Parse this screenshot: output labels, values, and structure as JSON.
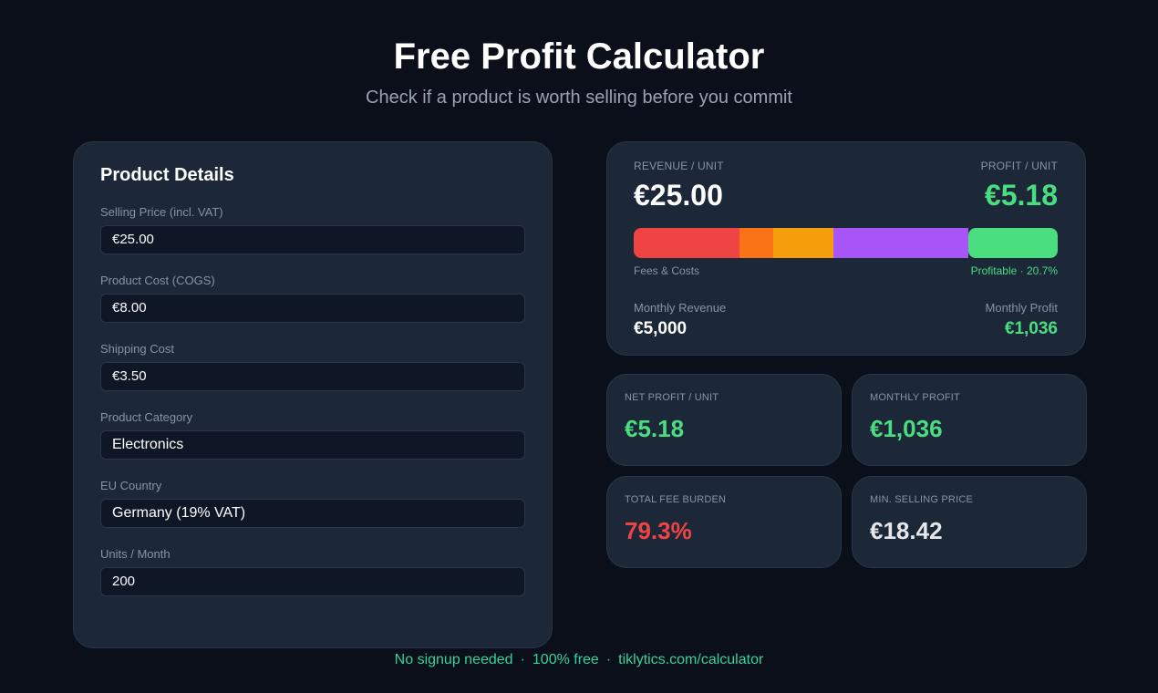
{
  "header": {
    "title": "Free Profit Calculator",
    "subtitle": "Check if a product is worth selling before you commit"
  },
  "details": {
    "title": "Product Details",
    "fields": [
      {
        "label": "Selling Price (incl. VAT)",
        "value": "€25.00"
      },
      {
        "label": "Product Cost (COGS)",
        "value": "€8.00"
      },
      {
        "label": "Shipping Cost",
        "value": "€3.50"
      },
      {
        "label": "Product Category",
        "value": "Electronics"
      },
      {
        "label": "EU Country",
        "value": "Germany (19% VAT)"
      },
      {
        "label": "Units / Month",
        "value": "200"
      }
    ]
  },
  "summary": {
    "revenue_label": "REVENUE / UNIT",
    "revenue_value": "€25.00",
    "profit_label": "PROFIT / UNIT",
    "profit_value": "€5.18",
    "bar_caption_left": "Fees & Costs",
    "bar_caption_right": "Profitable · 20.7%",
    "fee_breakdown": [
      {
        "share": 0.25,
        "color": "#ef4444"
      },
      {
        "share": 0.08,
        "color": "#f97316"
      },
      {
        "share": 0.14,
        "color": "#f59e0b"
      },
      {
        "share": 0.32,
        "color": "#a855f7"
      },
      {
        "share": 0.21,
        "color": "#4ade80"
      }
    ],
    "monthly_revenue_label": "Monthly Revenue",
    "monthly_revenue_value": "€5,000",
    "monthly_profit_label": "Monthly Profit",
    "monthly_profit_value": "€1,036"
  },
  "metrics": [
    {
      "label": "NET PROFIT / UNIT",
      "value": "€5.18",
      "color": "#4ade80"
    },
    {
      "label": "MONTHLY PROFIT",
      "value": "€1,036",
      "color": "#4ade80"
    },
    {
      "label": "TOTAL FEE BURDEN",
      "value": "79.3%",
      "color": "#ef4444"
    },
    {
      "label": "MIN. SELLING PRICE",
      "value": "€18.42",
      "color": "#e5e7eb"
    }
  ],
  "footer": {
    "item1": "No signup needed",
    "item2": "100% free",
    "item3": "tiklytics.com/calculator",
    "separator": "·"
  },
  "colors": {
    "profit": "#4ade80",
    "loss": "#ef4444",
    "accent_footer": "#34d399",
    "card_bg": "#1c2738",
    "page_bg": "#0a0f1a"
  }
}
